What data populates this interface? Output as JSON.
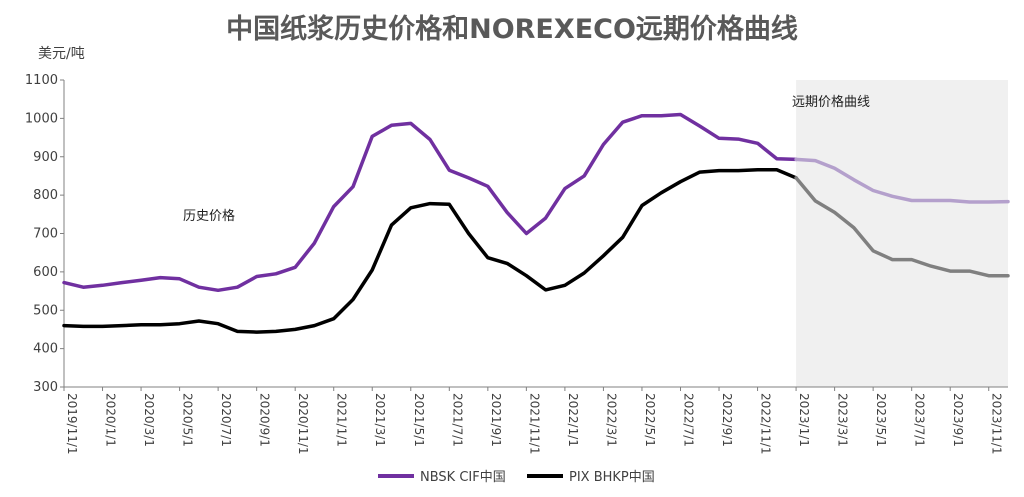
{
  "chart_data": {
    "type": "line",
    "title": "中国纸浆历史价格和NOREXECO远期价格曲线",
    "unit_label": "美元/吨",
    "ylim": [
      300,
      1100
    ],
    "yticks": [
      300,
      400,
      500,
      600,
      700,
      800,
      900,
      1000,
      1100
    ],
    "grid": false,
    "legend_position": "bottom",
    "xtick_labels": [
      "2019/11/1",
      "2020/1/1",
      "2020/3/1",
      "2020/5/1",
      "2020/7/1",
      "2020/9/1",
      "2020/11/1",
      "2021/1/1",
      "2021/3/1",
      "2021/5/1",
      "2021/7/1",
      "2021/9/1",
      "2021/11/1",
      "2022/1/1",
      "2022/3/1",
      "2022/5/1",
      "2022/7/1",
      "2022/9/1",
      "2022/11/1",
      "2023/1/1",
      "2023/3/1",
      "2023/5/1",
      "2023/7/1",
      "2023/9/1",
      "2023/11/1"
    ],
    "x": [
      "2019/11/1",
      "2019/12/1",
      "2020/1/1",
      "2020/2/1",
      "2020/3/1",
      "2020/4/1",
      "2020/5/1",
      "2020/6/1",
      "2020/7/1",
      "2020/8/1",
      "2020/9/1",
      "2020/10/1",
      "2020/11/1",
      "2020/12/1",
      "2021/1/1",
      "2021/2/1",
      "2021/3/1",
      "2021/4/1",
      "2021/5/1",
      "2021/6/1",
      "2021/7/1",
      "2021/8/1",
      "2021/9/1",
      "2021/10/1",
      "2021/11/1",
      "2021/12/1",
      "2022/1/1",
      "2022/2/1",
      "2022/3/1",
      "2022/4/1",
      "2022/5/1",
      "2022/6/1",
      "2022/7/1",
      "2022/8/1",
      "2022/9/1",
      "2022/10/1",
      "2022/11/1",
      "2022/12/1",
      "2023/1/1",
      "2023/2/1",
      "2023/3/1",
      "2023/4/1",
      "2023/5/1",
      "2023/6/1",
      "2023/7/1",
      "2023/8/1",
      "2023/9/1",
      "2023/10/1",
      "2023/11/1",
      "2023/12/1"
    ],
    "forecast_start": "2023/1/1",
    "series": [
      {
        "name": "NBSK CIF中国",
        "color": "#7030a0",
        "forecast_color": "#b4a0cc",
        "values": [
          572,
          560,
          565,
          572,
          578,
          585,
          582,
          560,
          552,
          560,
          588,
          595,
          612,
          675,
          770,
          822,
          953,
          982,
          987,
          945,
          865,
          845,
          823,
          755,
          700,
          740,
          817,
          850,
          932,
          990,
          1007,
          1007,
          1010,
          980,
          948,
          946,
          935,
          895,
          893,
          890,
          870,
          840,
          812,
          797,
          786,
          786,
          786,
          782,
          782,
          783
        ]
      },
      {
        "name": "PIX BHKP中国",
        "color": "#000000",
        "forecast_color": "#808080",
        "values": [
          460,
          458,
          458,
          460,
          462,
          462,
          465,
          472,
          465,
          445,
          443,
          445,
          450,
          460,
          478,
          528,
          605,
          722,
          767,
          778,
          776,
          700,
          637,
          622,
          590,
          553,
          565,
          597,
          642,
          690,
          773,
          806,
          835,
          860,
          864,
          864,
          866,
          866,
          845,
          785,
          755,
          715,
          655,
          632,
          632,
          615,
          602,
          602,
          590,
          590
        ]
      }
    ],
    "annotations": [
      {
        "text": "历史价格"
      },
      {
        "text": "远期价格曲线"
      }
    ]
  }
}
